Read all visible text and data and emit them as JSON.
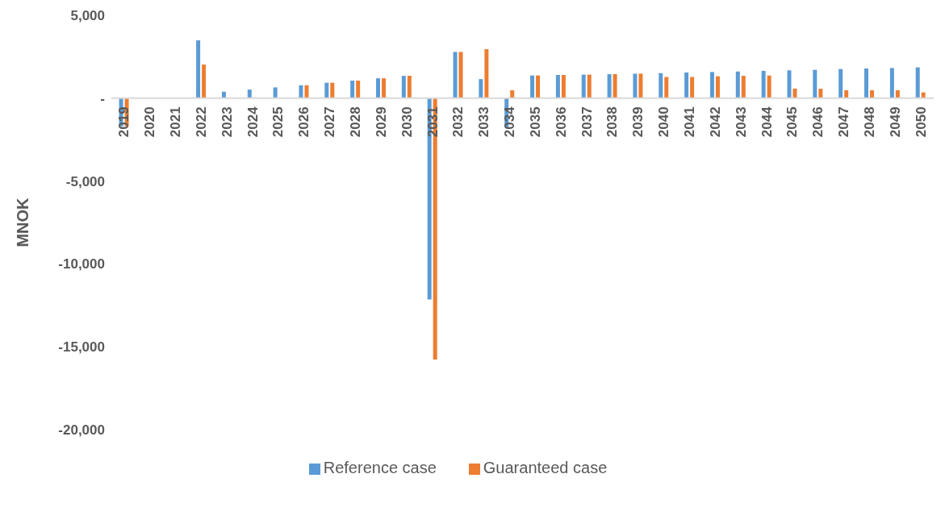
{
  "chart_data": {
    "type": "bar",
    "ylabel": "MNOK",
    "categories": [
      "2019",
      "2020",
      "2021",
      "2022",
      "2023",
      "2024",
      "2025",
      "2026",
      "2027",
      "2028",
      "2029",
      "2030",
      "2031",
      "2032",
      "2033",
      "2034",
      "2035",
      "2036",
      "2037",
      "2038",
      "2039",
      "2040",
      "2041",
      "2042",
      "2043",
      "2044",
      "2045",
      "2046",
      "2047",
      "2048",
      "2049",
      "2050"
    ],
    "series": [
      {
        "name": "Reference case",
        "color": "#5b9bd5",
        "values": [
          -1700,
          0,
          0,
          3490,
          390,
          520,
          650,
          780,
          930,
          1060,
          1200,
          1350,
          -12140,
          2790,
          1150,
          -1740,
          1370,
          1400,
          1420,
          1450,
          1480,
          1510,
          1550,
          1580,
          1610,
          1650,
          1680,
          1710,
          1760,
          1790,
          1820,
          1860
        ]
      },
      {
        "name": "Guaranteed case",
        "color": "#ed7d31",
        "values": [
          -1700,
          0,
          0,
          2030,
          0,
          0,
          0,
          780,
          930,
          1060,
          1200,
          1350,
          -15770,
          2790,
          2960,
          480,
          1370,
          1400,
          1420,
          1450,
          1480,
          1280,
          1280,
          1320,
          1350,
          1370,
          580,
          570,
          480,
          480,
          480,
          350
        ]
      }
    ],
    "ylim": [
      -20000,
      5000
    ],
    "yticks": [
      {
        "value": -20000,
        "label": "-20,000"
      },
      {
        "value": -15000,
        "label": "-15,000"
      },
      {
        "value": -10000,
        "label": "-10,000"
      },
      {
        "value": -5000,
        "label": "-5,000"
      },
      {
        "value": 0,
        "label": "-"
      },
      {
        "value": 5000,
        "label": "5,000"
      }
    ],
    "grid": false,
    "legend": "bottom"
  }
}
